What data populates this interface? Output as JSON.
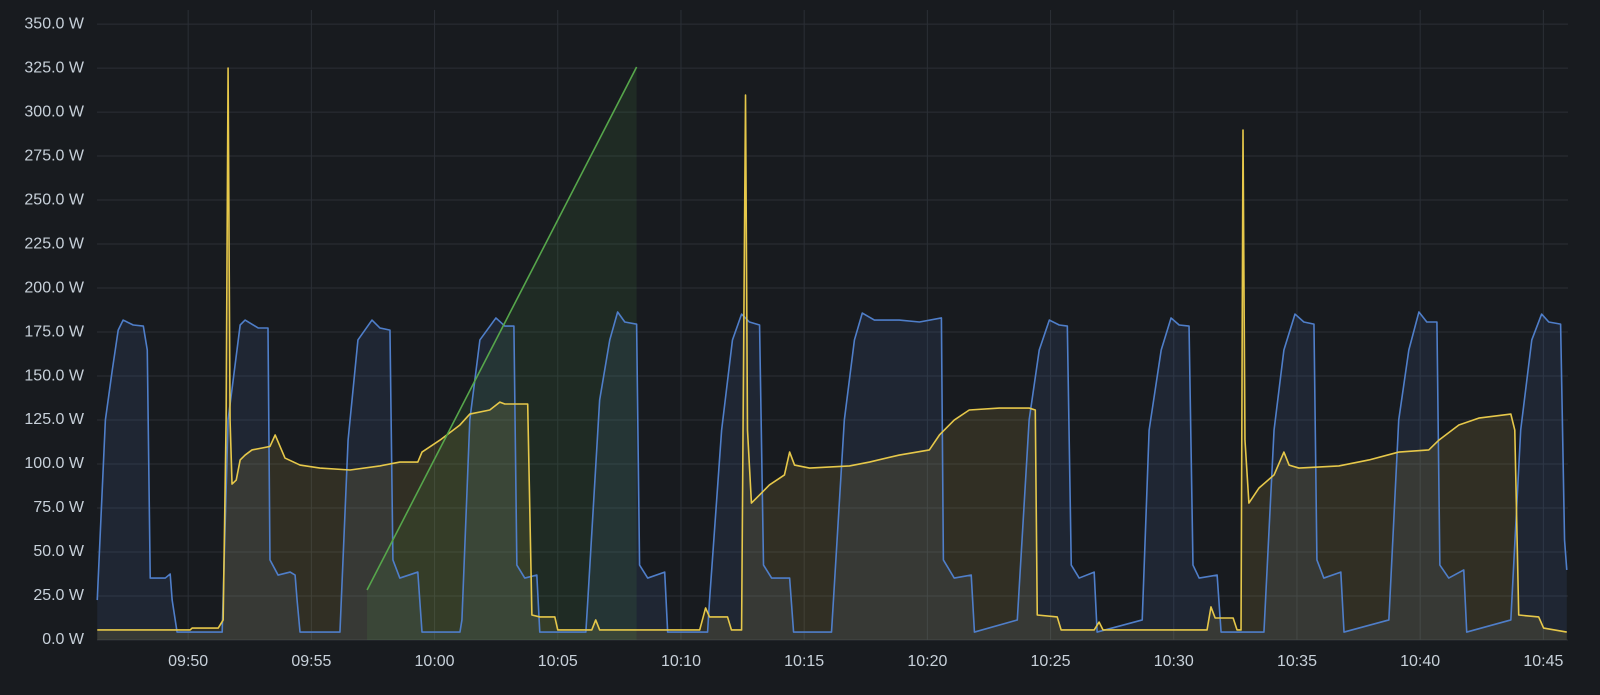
{
  "chart_data": {
    "type": "line",
    "xlim": [
      586.3,
      646.0
    ],
    "ylim": [
      0,
      358
    ],
    "grid": true,
    "fill_opacity": 0.12,
    "xticks": [
      {
        "value": 590,
        "label": "09:50"
      },
      {
        "value": 595,
        "label": "09:55"
      },
      {
        "value": 600,
        "label": "10:00"
      },
      {
        "value": 605,
        "label": "10:05"
      },
      {
        "value": 610,
        "label": "10:10"
      },
      {
        "value": 615,
        "label": "10:15"
      },
      {
        "value": 620,
        "label": "10:20"
      },
      {
        "value": 625,
        "label": "10:25"
      },
      {
        "value": 630,
        "label": "10:30"
      },
      {
        "value": 635,
        "label": "10:35"
      },
      {
        "value": 640,
        "label": "10:40"
      },
      {
        "value": 645,
        "label": "10:45"
      }
    ],
    "yticks": [
      {
        "value": 0,
        "label": "0.0 W"
      },
      {
        "value": 25,
        "label": "25.0 W"
      },
      {
        "value": 50,
        "label": "50.0 W"
      },
      {
        "value": 75,
        "label": "75.0 W"
      },
      {
        "value": 100,
        "label": "100.0 W"
      },
      {
        "value": 125,
        "label": "125.0 W"
      },
      {
        "value": 150,
        "label": "150.0 W"
      },
      {
        "value": 175,
        "label": "175.0 W"
      },
      {
        "value": 200,
        "label": "200.0 W"
      },
      {
        "value": 225,
        "label": "225.0 W"
      },
      {
        "value": 250,
        "label": "250.0 W"
      },
      {
        "value": 275,
        "label": "275.0 W"
      },
      {
        "value": 300,
        "label": "300.0 W"
      },
      {
        "value": 325,
        "label": "325.0 W"
      },
      {
        "value": 350,
        "label": "350.0 W"
      }
    ],
    "series": [
      {
        "color": "#4f7ec9",
        "x": [
          586.31,
          586.64,
          586.92,
          587.16,
          587.36,
          587.77,
          588.18,
          588.34,
          588.46,
          589.07,
          589.27,
          589.35,
          589.55,
          591.38,
          591.62,
          592.11,
          592.31,
          592.84,
          593.24,
          593.32,
          593.65,
          594.14,
          594.34,
          594.42,
          594.54,
          596.16,
          596.49,
          596.89,
          597.46,
          597.78,
          598.19,
          598.31,
          598.59,
          599.32,
          599.49,
          601.03,
          601.11,
          601.43,
          601.84,
          602.49,
          602.85,
          603.22,
          603.34,
          603.66,
          604.15,
          604.27,
          606.14,
          606.22,
          606.7,
          607.11,
          607.43,
          607.72,
          608.2,
          608.32,
          608.65,
          609.34,
          609.46,
          611.08,
          611.16,
          611.65,
          612.09,
          612.46,
          612.78,
          613.19,
          613.35,
          613.68,
          614.41,
          614.57,
          616.11,
          616.63,
          617.04,
          617.36,
          617.85,
          618.86,
          619.68,
          620.57,
          620.65,
          621.09,
          621.78,
          621.91,
          623.65,
          624.13,
          624.54,
          624.95,
          625.35,
          625.68,
          625.84,
          626.16,
          626.77,
          626.89,
          628.72,
          629.0,
          629.49,
          629.89,
          630.22,
          630.62,
          630.78,
          631.03,
          631.76,
          631.92,
          633.66,
          634.07,
          634.47,
          634.92,
          635.28,
          635.69,
          635.81,
          636.09,
          636.78,
          636.91,
          638.73,
          639.13,
          639.54,
          639.95,
          640.27,
          640.68,
          640.8,
          641.16,
          641.77,
          641.89,
          643.68,
          644.08,
          644.53,
          644.93,
          645.22,
          645.7,
          645.86,
          645.95
        ],
        "values": [
          22.7,
          125,
          153.4,
          176.1,
          181.8,
          179,
          178.4,
          164.8,
          35.2,
          35.2,
          37.5,
          22.7,
          4.5,
          4.5,
          125,
          179,
          181.8,
          177.3,
          177.3,
          45.5,
          36.9,
          38.6,
          36.9,
          22.7,
          4.5,
          4.5,
          113.6,
          170.5,
          181.8,
          177.3,
          176.1,
          45.5,
          35.2,
          38.6,
          4.5,
          4.5,
          11.4,
          125,
          170.5,
          183,
          178.4,
          178.4,
          42.6,
          35.2,
          36.9,
          4.5,
          4.5,
          22.7,
          136.4,
          170.5,
          186.4,
          180.7,
          179.5,
          42.6,
          35.2,
          38.6,
          4.5,
          4.5,
          22.7,
          119.3,
          170.5,
          185.2,
          180.7,
          179,
          42.6,
          35.2,
          35.2,
          4.5,
          4.5,
          125,
          170.5,
          185.8,
          181.8,
          181.8,
          180.7,
          183,
          45.5,
          35.2,
          36.9,
          4.5,
          11.4,
          125,
          164.8,
          181.8,
          179,
          178.4,
          42.6,
          35.2,
          38.6,
          4.5,
          11.4,
          119.3,
          164.8,
          183,
          179,
          178.4,
          42.6,
          35.2,
          36.9,
          4.5,
          4.5,
          119.3,
          164.8,
          185.2,
          180.7,
          179.5,
          45.5,
          35.2,
          38.6,
          4.5,
          11.4,
          125,
          164.8,
          186.4,
          180.7,
          180.7,
          42.6,
          35.2,
          39.8,
          4.5,
          11.4,
          119.3,
          170.5,
          185.2,
          180.7,
          179.5,
          56.8,
          39.8
        ]
      },
      {
        "color": "#e6c84a",
        "x": [
          586.31,
          590.08,
          590.16,
          591.22,
          591.42,
          591.54,
          591.62,
          591.7,
          591.78,
          591.95,
          592.11,
          592.31,
          592.59,
          593.0,
          593.32,
          593.53,
          593.93,
          594.54,
          595.35,
          596.57,
          597.78,
          598.59,
          599.32,
          599.49,
          600.22,
          601.03,
          601.43,
          602.24,
          602.65,
          602.85,
          603.78,
          603.95,
          604.27,
          604.88,
          605.0,
          606.38,
          606.54,
          606.7,
          610.76,
          611.0,
          611.16,
          611.89,
          612.05,
          612.46,
          612.62,
          612.7,
          612.86,
          613.19,
          613.59,
          614.2,
          614.41,
          614.61,
          615.22,
          616.84,
          617.65,
          618.86,
          620.08,
          620.49,
          621.09,
          621.7,
          622.92,
          624.13,
          624.38,
          624.46,
          625.27,
          625.43,
          626.77,
          626.97,
          627.13,
          631.35,
          631.51,
          631.68,
          632.41,
          632.57,
          632.73,
          632.81,
          632.89,
          633.05,
          633.46,
          634.07,
          634.47,
          634.68,
          635.08,
          636.7,
          637.92,
          639.13,
          640.35,
          640.76,
          641.57,
          642.38,
          643.68,
          643.84,
          644.0,
          644.81,
          645.01,
          645.95
        ],
        "values": [
          5.7,
          5.7,
          6.8,
          6.8,
          11.4,
          125,
          325,
          125,
          88.6,
          90.9,
          102.3,
          105.1,
          108.0,
          109.1,
          110,
          116.5,
          103.4,
          99.4,
          97.7,
          96.6,
          98.9,
          101.1,
          101.1,
          106.8,
          113.6,
          122.2,
          128.4,
          130.7,
          135.2,
          134.1,
          134.1,
          14.2,
          13.1,
          13.1,
          5.7,
          5.7,
          11.4,
          5.7,
          5.7,
          18.2,
          13.1,
          13.1,
          5.7,
          5.7,
          309.7,
          119.3,
          77.8,
          82.4,
          88.1,
          93.8,
          106.8,
          99.4,
          97.7,
          98.9,
          101.1,
          105.1,
          108.0,
          116.5,
          125,
          130.7,
          131.8,
          131.8,
          130.7,
          14.2,
          13.1,
          5.7,
          5.7,
          10.2,
          5.7,
          5.7,
          18.8,
          12.5,
          12.5,
          5.7,
          5.7,
          289.8,
          113.6,
          77.8,
          86.4,
          93.8,
          106.8,
          99.4,
          97.7,
          98.9,
          102.3,
          106.8,
          108.0,
          113.6,
          122.2,
          126.1,
          128.4,
          119.3,
          14.2,
          13.1,
          6.8,
          4.5
        ]
      },
      {
        "color": "#56a64b",
        "x": [
          597.26,
          608.2
        ],
        "values": [
          28.4,
          325.6
        ]
      }
    ]
  }
}
